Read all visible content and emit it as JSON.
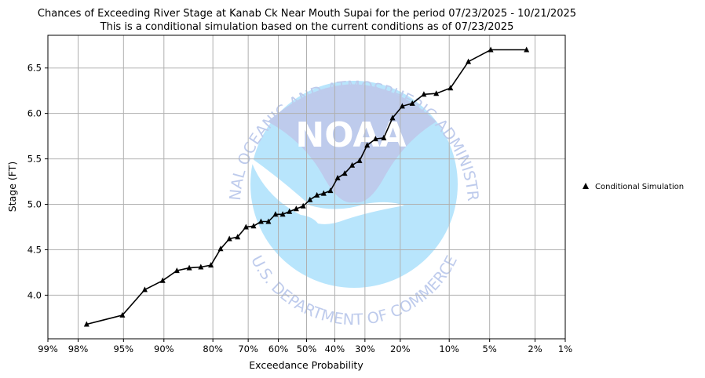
{
  "chart_data": {
    "type": "line",
    "title": "Chances of Exceeding River Stage at Kanab Ck Near Mouth Supai for the period 07/23/2025 - 10/21/2025",
    "subtitle": "This is a conditional simulation based on the current conditions as of 07/23/2025",
    "xlabel": "Exceedance Probability",
    "ylabel": "Stage (FT)",
    "x_scale": "normal-probability",
    "x_ticks": [
      {
        "p": 99,
        "label": "99%"
      },
      {
        "p": 98,
        "label": "98%"
      },
      {
        "p": 95,
        "label": "95%"
      },
      {
        "p": 90,
        "label": "90%"
      },
      {
        "p": 80,
        "label": "80%"
      },
      {
        "p": 70,
        "label": "70%"
      },
      {
        "p": 60,
        "label": "60%"
      },
      {
        "p": 50,
        "label": "50%"
      },
      {
        "p": 40,
        "label": "40%"
      },
      {
        "p": 30,
        "label": "30%"
      },
      {
        "p": 20,
        "label": "20%"
      },
      {
        "p": 10,
        "label": "10%"
      },
      {
        "p": 5,
        "label": "5%"
      },
      {
        "p": 2,
        "label": "2%"
      },
      {
        "p": 1,
        "label": "1%"
      }
    ],
    "y_ticks": [
      {
        "v": 4.0,
        "label": "4.0"
      },
      {
        "v": 4.5,
        "label": "4.5"
      },
      {
        "v": 5.0,
        "label": "5.0"
      },
      {
        "v": 5.5,
        "label": "5.5"
      },
      {
        "v": 6.0,
        "label": "6.0"
      },
      {
        "v": 6.5,
        "label": "6.5"
      }
    ],
    "ylim": [
      3.52,
      6.86
    ],
    "grid": true,
    "legend_position": "right",
    "series": [
      {
        "name": "Conditional Simulation",
        "color": "#000000",
        "marker": "triangle",
        "x": [
          97.6,
          95.1,
          92.7,
          90.2,
          87.8,
          85.4,
          82.9,
          80.5,
          78.0,
          75.6,
          73.2,
          70.7,
          68.3,
          65.9,
          63.4,
          61.0,
          58.5,
          56.1,
          53.7,
          51.2,
          48.8,
          46.3,
          43.9,
          41.5,
          39.0,
          36.6,
          34.1,
          31.7,
          29.3,
          26.8,
          24.4,
          22.0,
          19.5,
          17.1,
          14.6,
          12.2,
          9.8,
          7.3,
          4.9,
          2.4
        ],
        "y": [
          3.68,
          3.78,
          4.06,
          4.16,
          4.27,
          4.3,
          4.31,
          4.33,
          4.51,
          4.62,
          4.64,
          4.75,
          4.76,
          4.81,
          4.81,
          4.89,
          4.89,
          4.92,
          4.95,
          4.98,
          5.05,
          5.1,
          5.12,
          5.15,
          5.29,
          5.34,
          5.43,
          5.48,
          5.65,
          5.72,
          5.73,
          5.95,
          6.08,
          6.11,
          6.21,
          6.22,
          6.28,
          6.57,
          6.7,
          6.7
        ]
      }
    ]
  },
  "watermark": {
    "text_top": "NATIONAL OCEANIC AND ATMOSPHERIC ADMINISTRATION",
    "text_bottom": "U.S. DEPARTMENT OF COMMERCE",
    "logo": "NOAA"
  }
}
